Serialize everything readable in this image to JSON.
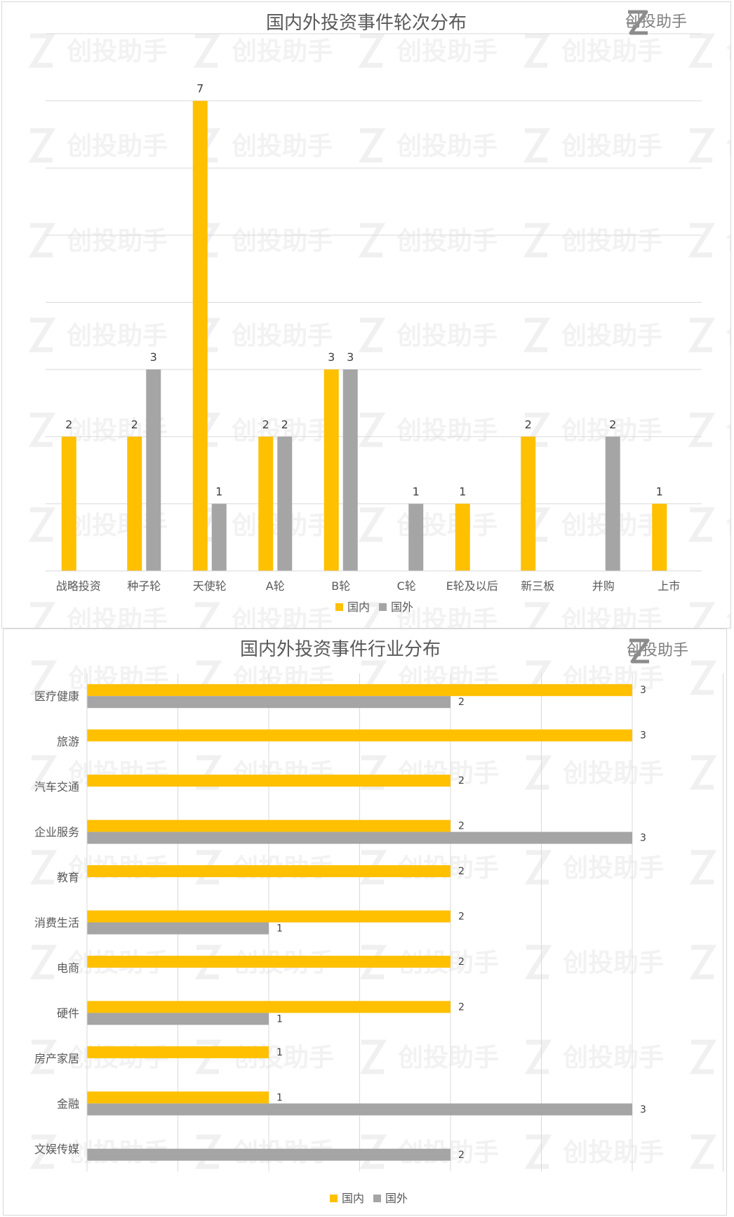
{
  "colors": {
    "domestic": "#FFC000",
    "foreign": "#A5A5A5",
    "grid": "#d9d9d9"
  },
  "logo": {
    "icon": "z-logo-icon",
    "text": "创投助手"
  },
  "watermark_text": "创投助手",
  "chart_data": [
    {
      "type": "bar",
      "orientation": "vertical",
      "title": "国内外投资事件轮次分布",
      "categories": [
        "战略投资",
        "种子轮",
        "天使轮",
        "A轮",
        "B轮",
        "C轮",
        "E轮及以后",
        "新三板",
        "并购",
        "上市"
      ],
      "series": [
        {
          "name": "国内",
          "values": [
            2,
            2,
            7,
            2,
            3,
            null,
            1,
            2,
            null,
            1
          ]
        },
        {
          "name": "国外",
          "values": [
            null,
            3,
            1,
            2,
            3,
            1,
            null,
            null,
            2,
            null
          ]
        }
      ],
      "ylim": [
        0,
        8
      ],
      "grid": true,
      "legend": "bottom",
      "data_labels": true
    },
    {
      "type": "bar",
      "orientation": "horizontal",
      "title": "国内外投资事件行业分布",
      "categories": [
        "医疗健康",
        "旅游",
        "汽车交通",
        "企业服务",
        "教育",
        "消费生活",
        "电商",
        "硬件",
        "房产家居",
        "金融",
        "文娱传媒"
      ],
      "series": [
        {
          "name": "国内",
          "values": [
            3,
            3,
            2,
            2,
            2,
            2,
            2,
            2,
            1,
            1,
            null
          ]
        },
        {
          "name": "国外",
          "values": [
            2,
            null,
            null,
            3,
            null,
            1,
            null,
            1,
            null,
            3,
            2
          ]
        }
      ],
      "xlim": [
        0,
        3.5
      ],
      "grid": true,
      "legend": "bottom",
      "data_labels": true
    }
  ]
}
